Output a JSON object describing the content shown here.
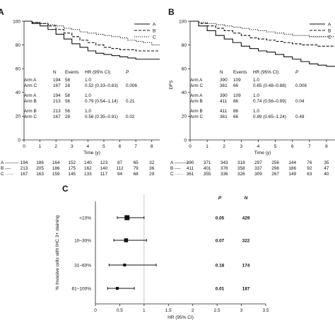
{
  "chart_data": [
    {
      "panel": "A",
      "type": "line",
      "title": "",
      "xlabel": "Time (y)",
      "ylabel": "",
      "xlim": [
        0,
        8.5
      ],
      "ylim": [
        0,
        100
      ],
      "x_ticks": [
        "0",
        "1",
        "2",
        "3",
        "4",
        "5",
        "6",
        "7",
        "8"
      ],
      "y_ticks": [
        "0",
        "20",
        "40",
        "60",
        "80",
        "100"
      ],
      "legend": {
        "position": "top-right",
        "entries": [
          "A",
          "B",
          "C"
        ]
      },
      "series": [
        {
          "name": "A",
          "style": "solid",
          "x": [
            0,
            0.5,
            1,
            1.5,
            2,
            2.5,
            3,
            3.5,
            4,
            4.5,
            5,
            5.5,
            6,
            6.5,
            7,
            7.5,
            8,
            8.5
          ],
          "values": [
            100,
            98,
            96,
            93,
            89,
            85,
            81,
            78,
            75,
            73,
            72,
            71,
            70,
            69,
            68,
            68,
            68,
            68
          ]
        },
        {
          "name": "B",
          "style": "dashed",
          "x": [
            0,
            0.5,
            1,
            1.5,
            2,
            2.5,
            3,
            3.5,
            4,
            4.5,
            5,
            5.5,
            6,
            6.5,
            7,
            7.5,
            8,
            8.5
          ],
          "values": [
            100,
            99,
            98,
            96,
            93,
            90,
            87,
            84,
            82,
            80,
            78,
            77,
            76,
            76,
            75,
            75,
            75,
            75
          ]
        },
        {
          "name": "C",
          "style": "dotted",
          "x": [
            0,
            0.5,
            1,
            1.5,
            2,
            2.5,
            3,
            3.5,
            4,
            4.5,
            5,
            5.5,
            6,
            6.5,
            7,
            7.5,
            8,
            8.5
          ],
          "values": [
            100,
            99,
            98,
            97,
            96,
            94,
            93,
            91,
            90,
            89,
            88,
            87,
            86,
            84,
            83,
            82,
            80,
            80
          ]
        }
      ],
      "stats_table": {
        "headers": [
          "",
          "N",
          "Events",
          "HR (95% CI)",
          "P"
        ],
        "groups": [
          [
            [
              "Arm A",
              "194",
              "58",
              "1.0",
              ""
            ],
            [
              "Arm C",
              "167",
              "28",
              "0.52 (0.33–0.83)",
              "0.006"
            ]
          ],
          [
            [
              "Arm A",
              "194",
              "58",
              "1.0",
              ""
            ],
            [
              "Arm B",
              "213",
              "56",
              "0.79 (0.54–1.14)",
              "0.21"
            ]
          ],
          [
            [
              "Arm B",
              "213",
              "56",
              "1.0",
              ""
            ],
            [
              "Arm C",
              "167",
              "28",
              "0.56 (0.35–0.91)",
              "0.02"
            ]
          ]
        ]
      },
      "at_risk": [
        {
          "label": "A",
          "line": "———",
          "values": [
            "194",
            "186",
            "164",
            "152",
            "140",
            "123",
            "87",
            "65",
            "32"
          ]
        },
        {
          "label": "B",
          "line": "----",
          "values": [
            "213",
            "205",
            "186",
            "175",
            "162",
            "140",
            "112",
            "79",
            "36"
          ]
        },
        {
          "label": "C",
          "line": "······",
          "values": [
            "167",
            "163",
            "159",
            "145",
            "133",
            "117",
            "94",
            "68",
            "29"
          ]
        }
      ]
    },
    {
      "panel": "B",
      "type": "line",
      "title": "",
      "xlabel": "Time (y)",
      "ylabel": "DFS",
      "xlim": [
        0,
        8.5
      ],
      "ylim": [
        0,
        100
      ],
      "x_ticks": [
        "0",
        "1",
        "2",
        "3",
        "4",
        "5",
        "6",
        "7",
        "8"
      ],
      "y_ticks": [
        "0",
        "20",
        "40",
        "60",
        "80",
        "100"
      ],
      "legend": {
        "position": "top-right",
        "entries": [
          "A",
          "B",
          "C"
        ]
      },
      "series": [
        {
          "name": "A",
          "style": "solid",
          "x": [
            0,
            0.5,
            1,
            1.5,
            2,
            2.5,
            3,
            3.5,
            4,
            4.5,
            5,
            5.5,
            6,
            6.5,
            7,
            7.5,
            8,
            8.5
          ],
          "values": [
            100,
            96,
            92,
            88,
            85,
            82,
            79,
            77,
            75,
            74,
            72,
            70,
            68,
            66,
            64,
            63,
            62,
            62
          ]
        },
        {
          "name": "B",
          "style": "dashed",
          "x": [
            0,
            0.5,
            1,
            1.5,
            2,
            2.5,
            3,
            3.5,
            4,
            4.5,
            5,
            5.5,
            6,
            6.5,
            7,
            7.5,
            8,
            8.5
          ],
          "values": [
            100,
            98,
            96,
            94,
            92,
            90,
            88,
            86,
            85,
            84,
            83,
            82,
            81,
            80,
            80,
            79,
            79,
            79
          ]
        },
        {
          "name": "C",
          "style": "dotted",
          "x": [
            0,
            0.5,
            1,
            1.5,
            2,
            2.5,
            3,
            3.5,
            4,
            4.5,
            5,
            5.5,
            6,
            6.5,
            7,
            7.5,
            8,
            8.5
          ],
          "values": [
            100,
            99,
            98,
            97,
            96,
            95,
            94,
            93,
            92,
            91,
            90,
            89,
            88,
            88,
            87,
            87,
            87,
            87
          ]
        }
      ],
      "stats_table": {
        "headers": [
          "",
          "N",
          "Events",
          "HR (95% CI)",
          "P"
        ],
        "groups": [
          [
            [
              "Arm A",
              "390",
              "109",
              "1.0",
              ""
            ],
            [
              "Arm C",
              "361",
              "66",
              "0.65 (0.48–0.88)",
              "0.006"
            ]
          ],
          [
            [
              "Arm A",
              "390",
              "109",
              "1.0",
              ""
            ],
            [
              "Arm B",
              "411",
              "86",
              "0.74 (0.56–0.99)",
              "0.04"
            ]
          ],
          [
            [
              "Arm B",
              "411",
              "86",
              "1.0",
              ""
            ],
            [
              "Arm C",
              "361",
              "66",
              "0.89 (0.65–1.24)",
              "0.49"
            ]
          ]
        ]
      },
      "at_risk": [
        {
          "label": "A",
          "line": "———",
          "values": [
            "390",
            "371",
            "343",
            "318",
            "297",
            "256",
            "144",
            "76",
            "35"
          ]
        },
        {
          "label": "B",
          "line": "----",
          "values": [
            "411",
            "401",
            "376",
            "358",
            "337",
            "298",
            "186",
            "92",
            "47"
          ]
        },
        {
          "label": "C",
          "line": "······",
          "values": [
            "361",
            "355",
            "336",
            "326",
            "309",
            "267",
            "149",
            "63",
            "40"
          ]
        }
      ]
    },
    {
      "panel": "C",
      "type": "forest",
      "title": "",
      "xlabel": "HR (95% CI)",
      "ylabel": "% Invasive cells with IHC 3+ staining",
      "xlim": [
        0,
        3.5
      ],
      "x_ticks": [
        "0",
        "0.5",
        "1",
        "1.5",
        "2",
        "2.5",
        "3",
        "3.5"
      ],
      "reference_line": 1.0,
      "headers": {
        "p": "P",
        "n": "N"
      },
      "rows": [
        {
          "label": "<10%",
          "hr": 0.65,
          "low": 0.45,
          "high": 1.0,
          "p": "0.05",
          "n": "429",
          "marker_size": "large"
        },
        {
          "label": "10–30%",
          "hr": 0.63,
          "low": 0.38,
          "high": 1.05,
          "p": "0.07",
          "n": "322",
          "marker_size": "medium"
        },
        {
          "label": "31–60%",
          "hr": 0.6,
          "low": 0.28,
          "high": 1.25,
          "p": "0.18",
          "n": "174",
          "marker_size": "small"
        },
        {
          "label": "61–100%",
          "hr": 0.45,
          "low": 0.25,
          "high": 0.8,
          "p": "0.01",
          "n": "187",
          "marker_size": "small"
        }
      ]
    }
  ]
}
